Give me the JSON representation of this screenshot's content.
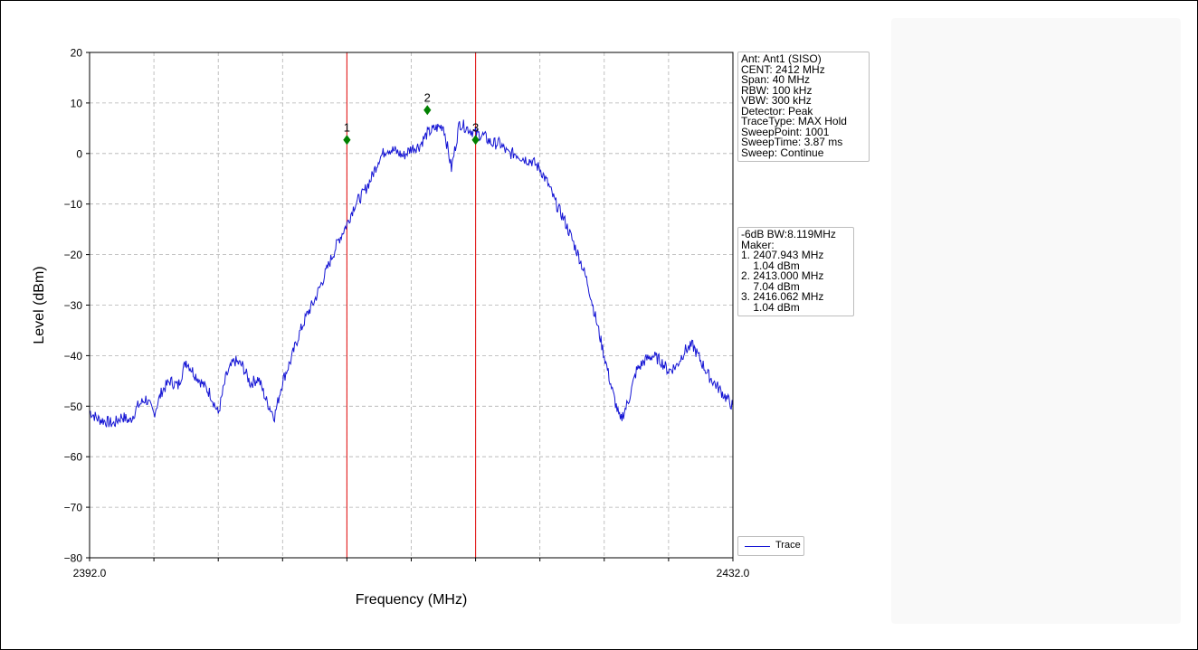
{
  "chart_data": {
    "type": "line",
    "xlabel": "Frequency (MHz)",
    "ylabel": "Level (dBm)",
    "xlim": [
      2392.0,
      2432.0
    ],
    "ylim": [
      -80,
      20
    ],
    "x_tick_labels": [
      "2392.0",
      "2432.0"
    ],
    "y_ticks": [
      20,
      10,
      0,
      -10,
      -20,
      -30,
      -40,
      -50,
      -60,
      -70,
      -80
    ],
    "y_tick_labels": [
      "20",
      "10",
      "0",
      "−10",
      "−20",
      "−30",
      "−40",
      "−50",
      "−60",
      "−70",
      "−80"
    ],
    "x_minor_ticks": [
      2396,
      2400,
      2404,
      2408,
      2412,
      2416,
      2420,
      2424,
      2428
    ],
    "grid": true,
    "legend_placement": "lower-right-outside",
    "series": [
      {
        "name": "Trace",
        "color": "#1515d4",
        "x": [
          2392.0,
          2392.5,
          2393.0,
          2393.5,
          2394.0,
          2394.5,
          2395.0,
          2395.5,
          2396.0,
          2396.5,
          2397.0,
          2397.5,
          2398.0,
          2398.5,
          2399.0,
          2399.5,
          2400.0,
          2400.5,
          2401.0,
          2401.5,
          2402.0,
          2402.5,
          2403.0,
          2403.5,
          2404.0,
          2404.5,
          2405.0,
          2405.5,
          2406.0,
          2406.5,
          2407.0,
          2407.5,
          2408.0,
          2408.5,
          2409.0,
          2409.5,
          2410.0,
          2410.5,
          2411.0,
          2411.5,
          2412.0,
          2412.5,
          2413.0,
          2413.5,
          2414.0,
          2414.5,
          2415.0,
          2415.5,
          2416.0,
          2416.5,
          2417.0,
          2417.5,
          2418.0,
          2418.5,
          2419.0,
          2419.5,
          2420.0,
          2420.5,
          2421.0,
          2421.5,
          2422.0,
          2422.5,
          2423.0,
          2423.5,
          2424.0,
          2424.5,
          2425.0,
          2425.5,
          2426.0,
          2426.5,
          2427.0,
          2427.5,
          2428.0,
          2428.5,
          2429.0,
          2429.5,
          2430.0,
          2430.5,
          2431.0,
          2431.5,
          2432.0
        ],
        "y": [
          -51,
          -52.5,
          -53,
          -53.5,
          -52,
          -53,
          -50,
          -48.5,
          -51.5,
          -47,
          -45,
          -46,
          -41,
          -43.5,
          -45.5,
          -47.5,
          -51.5,
          -44,
          -41,
          -42,
          -45.5,
          -44.5,
          -49,
          -52,
          -45,
          -41,
          -36,
          -32,
          -29,
          -25,
          -21,
          -17,
          -14,
          -10,
          -8,
          -5,
          -1,
          1,
          0.5,
          -0.5,
          1,
          1.5,
          4,
          5,
          5.5,
          -3,
          6,
          5,
          4,
          3.5,
          2,
          2,
          0,
          0,
          -1,
          -1.5,
          -3,
          -6,
          -10,
          -13,
          -17,
          -21,
          -26,
          -33,
          -40,
          -47,
          -53,
          -49,
          -43,
          -41,
          -40,
          -41,
          -43,
          -42,
          -39,
          -38,
          -41,
          -44,
          -46,
          -48,
          -50
        ]
      }
    ],
    "marker_lines": [
      2408.0,
      2416.0
    ],
    "marker_line_color": "#e31b1b",
    "markers": [
      {
        "label": "1",
        "x": 2408.0,
        "y": 2.7
      },
      {
        "label": "2",
        "x": 2413.0,
        "y": 8.6
      },
      {
        "label": "3",
        "x": 2416.0,
        "y": 2.7
      }
    ],
    "marker_color": "#008000"
  },
  "params_box": {
    "lines": [
      "Ant: Ant1 (SISO)",
      "CENT: 2412 MHz",
      "Span: 40 MHz",
      "RBW: 100 kHz",
      "VBW: 300 kHz",
      "Detector: Peak",
      "TraceType: MAX Hold",
      "SweepPoint: 1001",
      "SweepTime: 3.87 ms",
      "Sweep: Continue"
    ]
  },
  "markers_box": {
    "lines": [
      "-6dB BW:8.119MHz",
      "Maker:",
      "1. 2407.943 MHz",
      "    1.04 dBm",
      "2. 2413.000 MHz",
      "    7.04 dBm",
      "3. 2416.062 MHz",
      "    1.04 dBm"
    ]
  },
  "legend": {
    "label": "Trace"
  }
}
